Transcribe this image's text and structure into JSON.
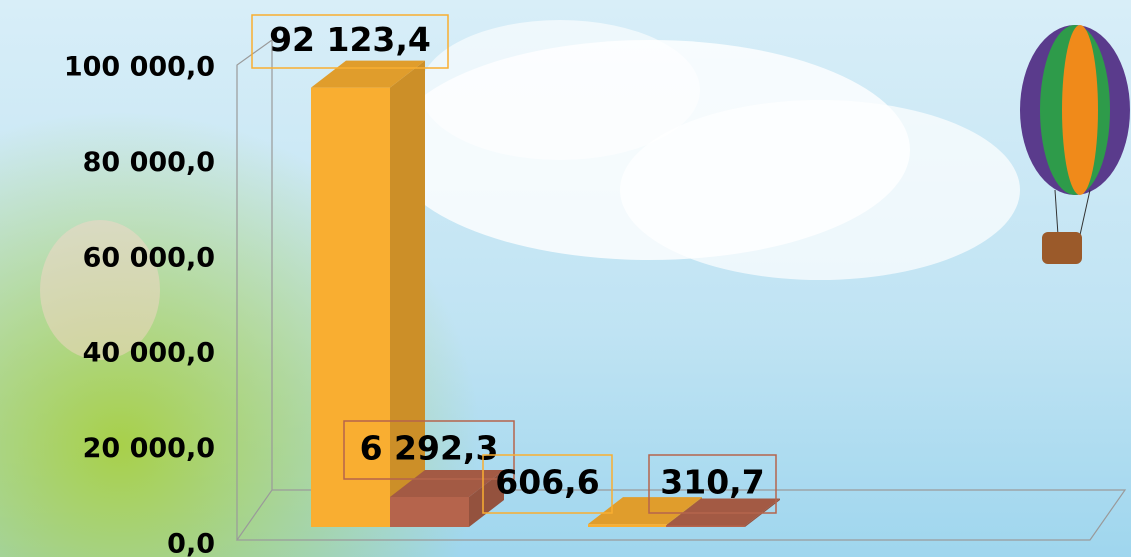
{
  "chart_data": {
    "type": "bar3d",
    "categories": [
      null,
      null,
      null,
      null
    ],
    "values": [
      92123.4,
      6292.3,
      606.6,
      310.7
    ],
    "value_labels": [
      "92 123,4",
      "6 292,3",
      "606,6",
      "310,7"
    ],
    "colors": [
      "#f9ae31",
      "#b5644c",
      "#f9ae31",
      "#b5644c"
    ],
    "ylim": [
      0,
      100000
    ],
    "yticks": [
      {
        "value": 0,
        "label": "0,0"
      },
      {
        "value": 20000,
        "label": "20 000,0"
      },
      {
        "value": 40000,
        "label": "40 000,0"
      },
      {
        "value": 60000,
        "label": "60 000,0"
      },
      {
        "value": 80000,
        "label": "80 000,0"
      },
      {
        "value": 100000,
        "label": "100 000,0"
      }
    ],
    "grid": false
  }
}
